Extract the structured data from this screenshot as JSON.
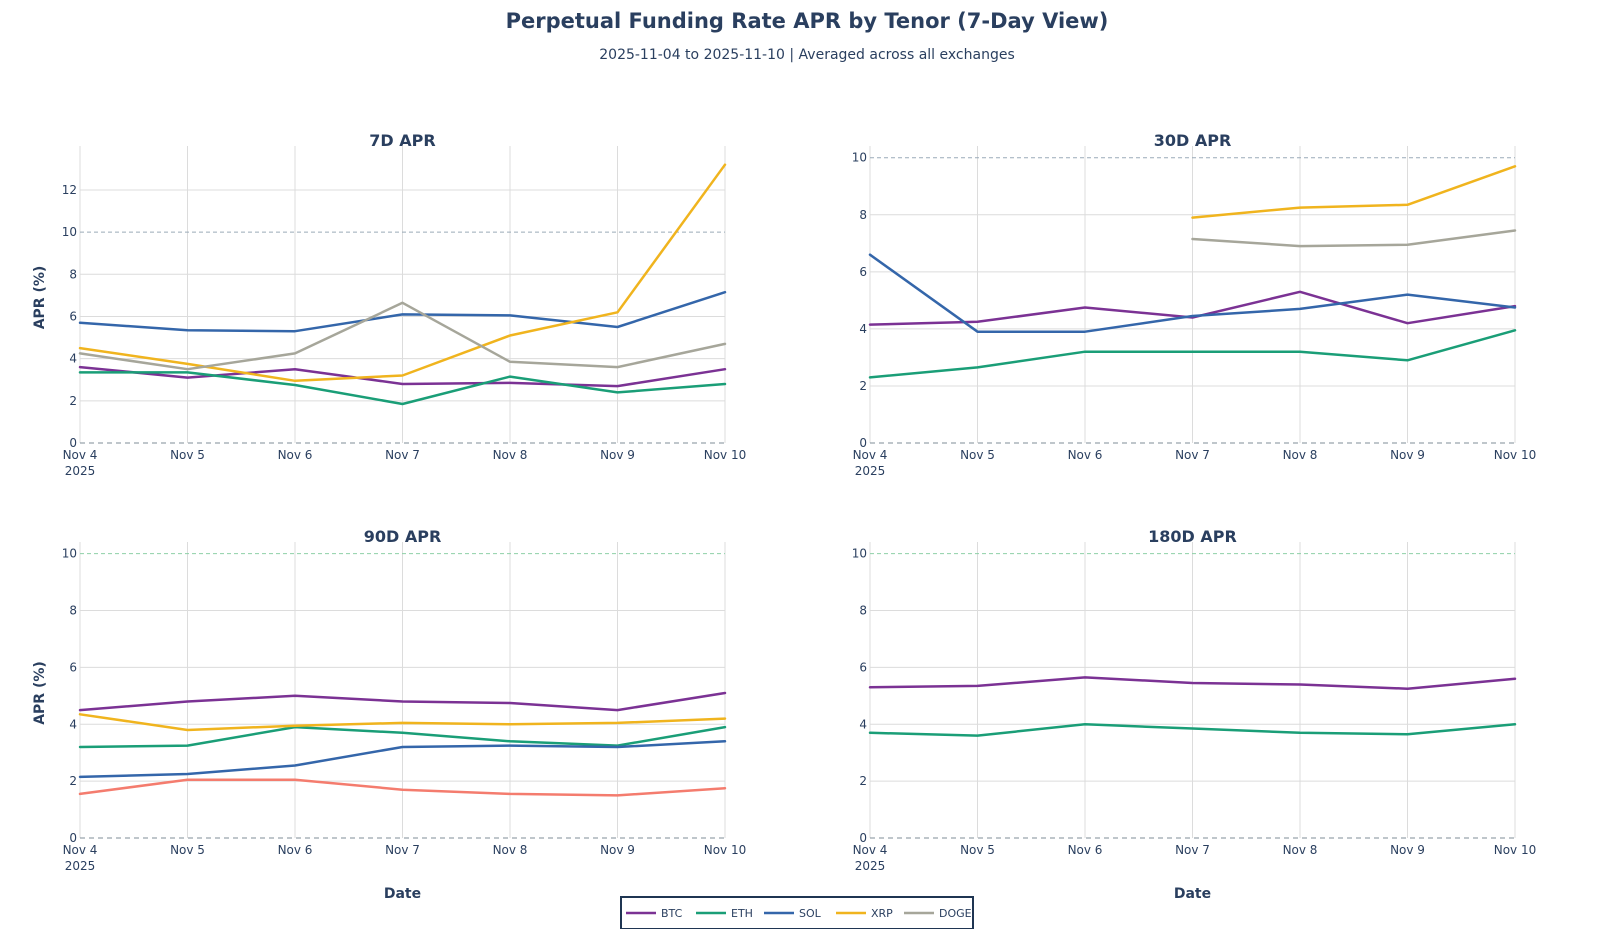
{
  "chart_data": {
    "title": "Perpetual Funding Rate APR by Tenor (7-Day View)",
    "subtitle": "2025-11-04 to 2025-11-10 | Averaged across all exchanges",
    "dates": [
      "Nov 4",
      "Nov 5",
      "Nov 6",
      "Nov 7",
      "Nov 8",
      "Nov 9",
      "Nov 10"
    ],
    "year_label": "2025",
    "xlabel": "Date",
    "ylabel": "APR (%)",
    "reference_line": 10,
    "legend": [
      {
        "name": "BTC",
        "color": "#7b3294"
      },
      {
        "name": "ETH",
        "color": "#1a9e77"
      },
      {
        "name": "SOL",
        "color": "#3466aa"
      },
      {
        "name": "XRP",
        "color": "#f0b41e"
      },
      {
        "name": "DOGE",
        "color": "#a6a69a"
      }
    ],
    "panels": [
      {
        "title": "7D APR",
        "type": "line",
        "ylim": [
          0,
          13.8
        ],
        "yticks": [
          0,
          2,
          4,
          6,
          8,
          10,
          12
        ],
        "ref_color": "#9aaab8",
        "series": [
          {
            "name": "BTC",
            "color": "#7b3294",
            "values": [
              3.6,
              3.1,
              3.5,
              2.8,
              2.85,
              2.7,
              3.5
            ]
          },
          {
            "name": "ETH",
            "color": "#1a9e77",
            "values": [
              3.35,
              3.35,
              2.75,
              1.85,
              3.15,
              2.4,
              2.8
            ]
          },
          {
            "name": "SOL",
            "color": "#3466aa",
            "values": [
              5.7,
              5.35,
              5.3,
              6.1,
              6.05,
              5.5,
              7.15
            ]
          },
          {
            "name": "XRP",
            "color": "#f0b41e",
            "values": [
              4.5,
              3.75,
              2.95,
              3.2,
              5.1,
              6.2,
              13.2
            ]
          },
          {
            "name": "DOGE",
            "color": "#a6a69a",
            "values": [
              4.25,
              3.5,
              4.25,
              6.65,
              3.85,
              3.6,
              4.7
            ]
          }
        ]
      },
      {
        "title": "30D APR",
        "type": "line",
        "ylim": [
          0,
          10.2
        ],
        "yticks": [
          0,
          2,
          4,
          6,
          8,
          10
        ],
        "ref_color": "#9aaab8",
        "series": [
          {
            "name": "BTC",
            "color": "#7b3294",
            "values": [
              4.15,
              4.25,
              4.75,
              4.4,
              5.3,
              4.2,
              4.8
            ]
          },
          {
            "name": "ETH",
            "color": "#1a9e77",
            "values": [
              2.3,
              2.65,
              3.2,
              3.2,
              3.2,
              2.9,
              3.95
            ]
          },
          {
            "name": "SOL",
            "color": "#3466aa",
            "values": [
              6.6,
              3.9,
              3.9,
              4.45,
              4.7,
              5.2,
              4.75
            ]
          },
          {
            "name": "XRP",
            "color": "#f0b41e",
            "values": [
              null,
              null,
              null,
              7.9,
              8.25,
              8.35,
              9.7
            ]
          },
          {
            "name": "DOGE",
            "color": "#a6a69a",
            "values": [
              null,
              null,
              null,
              7.15,
              6.9,
              6.95,
              7.45
            ]
          }
        ]
      },
      {
        "title": "90D APR",
        "type": "line",
        "ylim": [
          0,
          10.2
        ],
        "yticks": [
          0,
          2,
          4,
          6,
          8,
          10
        ],
        "ref_color": "#8fd0a8",
        "series": [
          {
            "name": "BTC",
            "color": "#7b3294",
            "values": [
              4.5,
              4.8,
              5.0,
              4.8,
              4.75,
              4.5,
              5.1
            ]
          },
          {
            "name": "ETH",
            "color": "#1a9e77",
            "values": [
              3.2,
              3.25,
              3.9,
              3.7,
              3.4,
              3.25,
              3.9
            ]
          },
          {
            "name": "SOL",
            "color": "#3466aa",
            "values": [
              2.15,
              2.25,
              2.55,
              3.2,
              3.25,
              3.2,
              3.4
            ]
          },
          {
            "name": "XRP",
            "color": "#f0b41e",
            "values": [
              4.35,
              3.8,
              3.95,
              4.05,
              4.0,
              4.05,
              4.2
            ]
          },
          {
            "name": "unlabeled (red)",
            "color": "#f47c6e",
            "values": [
              1.55,
              2.05,
              2.05,
              1.7,
              1.55,
              1.5,
              1.75
            ]
          }
        ]
      },
      {
        "title": "180D APR",
        "type": "line",
        "ylim": [
          0,
          10.2
        ],
        "yticks": [
          0,
          2,
          4,
          6,
          8,
          10
        ],
        "ref_color": "#8fd0a8",
        "series": [
          {
            "name": "BTC",
            "color": "#7b3294",
            "values": [
              5.3,
              5.35,
              5.65,
              5.45,
              5.4,
              5.25,
              5.6
            ]
          },
          {
            "name": "ETH",
            "color": "#1a9e77",
            "values": [
              3.7,
              3.6,
              4.0,
              3.85,
              3.7,
              3.65,
              4.0
            ]
          }
        ]
      }
    ]
  }
}
